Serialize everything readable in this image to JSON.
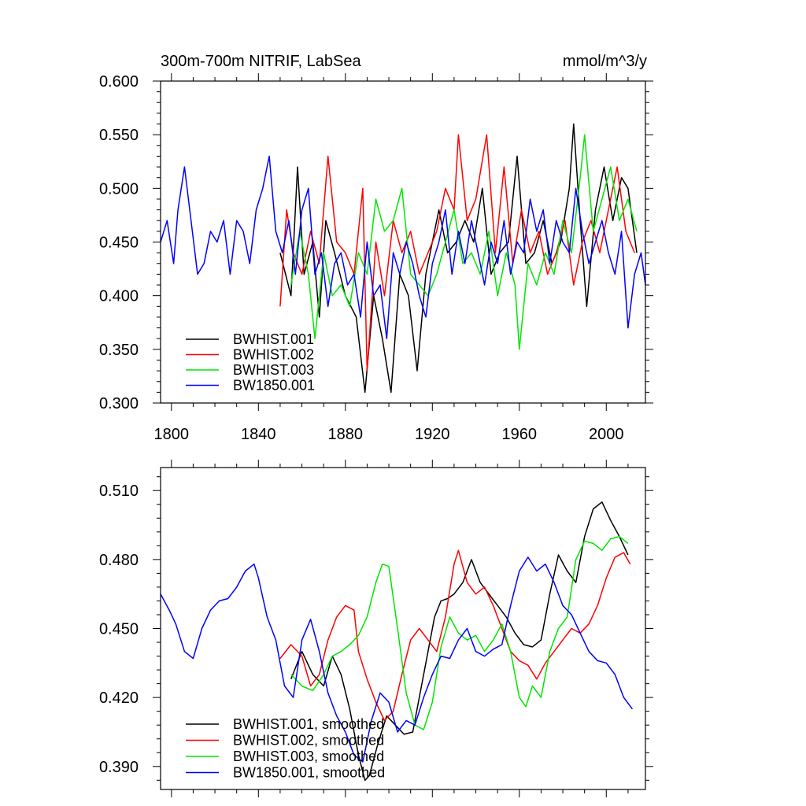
{
  "chart_data": [
    {
      "type": "line",
      "title": "300m-700m NITRIF, LabSea",
      "units": "mmol/m^3/y",
      "xlabel": "",
      "ylabel": "",
      "xlim": [
        1795,
        2018
      ],
      "ylim": [
        0.3,
        0.6
      ],
      "x_ticks": [
        1800,
        1840,
        1880,
        1920,
        1960,
        2000
      ],
      "x_tick_labels": [
        "1800",
        "1840",
        "1880",
        "1920",
        "1960",
        "2000"
      ],
      "y_ticks": [
        0.3,
        0.35,
        0.4,
        0.45,
        0.5,
        0.55,
        0.6
      ],
      "y_tick_labels": [
        "0.300",
        "0.350",
        "0.400",
        "0.450",
        "0.500",
        "0.550",
        "0.600"
      ],
      "legend_position": "bottom-left",
      "series": [
        {
          "name": "BWHIST.001",
          "color": "#000000",
          "x": [
            1850,
            1855,
            1858,
            1861,
            1865,
            1868,
            1871,
            1875,
            1880,
            1885,
            1889,
            1893,
            1897,
            1901,
            1905,
            1909,
            1913,
            1917,
            1920,
            1923,
            1927,
            1931,
            1935,
            1939,
            1943,
            1947,
            1951,
            1955,
            1959,
            1963,
            1967,
            1971,
            1975,
            1979,
            1983,
            1985,
            1988,
            1991,
            1995,
            1999,
            2003,
            2007,
            2010,
            2014
          ],
          "values": [
            0.44,
            0.4,
            0.52,
            0.42,
            0.45,
            0.38,
            0.47,
            0.44,
            0.4,
            0.38,
            0.31,
            0.4,
            0.36,
            0.31,
            0.42,
            0.4,
            0.33,
            0.42,
            0.45,
            0.48,
            0.44,
            0.45,
            0.47,
            0.45,
            0.5,
            0.42,
            0.44,
            0.45,
            0.53,
            0.43,
            0.44,
            0.47,
            0.43,
            0.45,
            0.5,
            0.56,
            0.47,
            0.39,
            0.48,
            0.52,
            0.47,
            0.51,
            0.5,
            0.44
          ]
        },
        {
          "name": "BWHIST.002",
          "color": "#ff0000",
          "x": [
            1850,
            1853,
            1856,
            1860,
            1864,
            1868,
            1872,
            1876,
            1880,
            1884,
            1888,
            1890,
            1894,
            1898,
            1902,
            1906,
            1910,
            1914,
            1918,
            1922,
            1926,
            1930,
            1932,
            1936,
            1940,
            1945,
            1949,
            1953,
            1957,
            1961,
            1965,
            1969,
            1973,
            1977,
            1981,
            1985,
            1989,
            1993,
            1997,
            2001,
            2005,
            2009,
            2013
          ],
          "values": [
            0.39,
            0.48,
            0.44,
            0.42,
            0.46,
            0.43,
            0.53,
            0.45,
            0.44,
            0.42,
            0.5,
            0.33,
            0.45,
            0.4,
            0.47,
            0.44,
            0.46,
            0.42,
            0.44,
            0.46,
            0.5,
            0.48,
            0.55,
            0.47,
            0.49,
            0.55,
            0.44,
            0.52,
            0.43,
            0.48,
            0.44,
            0.46,
            0.42,
            0.44,
            0.47,
            0.41,
            0.45,
            0.47,
            0.44,
            0.48,
            0.52,
            0.46,
            0.44
          ]
        },
        {
          "name": "BWHIST.003",
          "color": "#00e600",
          "x": [
            1855,
            1859,
            1863,
            1866,
            1870,
            1874,
            1878,
            1882,
            1886,
            1890,
            1894,
            1898,
            1902,
            1906,
            1910,
            1914,
            1918,
            1922,
            1926,
            1930,
            1934,
            1938,
            1942,
            1946,
            1950,
            1954,
            1958,
            1960,
            1964,
            1968,
            1972,
            1976,
            1980,
            1984,
            1988,
            1990,
            1994,
            1998,
            2002,
            2006,
            2010,
            2014
          ],
          "values": [
            0.41,
            0.46,
            0.42,
            0.36,
            0.44,
            0.4,
            0.41,
            0.39,
            0.44,
            0.42,
            0.49,
            0.46,
            0.47,
            0.5,
            0.42,
            0.41,
            0.4,
            0.42,
            0.45,
            0.48,
            0.43,
            0.44,
            0.42,
            0.46,
            0.4,
            0.44,
            0.41,
            0.35,
            0.43,
            0.41,
            0.44,
            0.42,
            0.47,
            0.44,
            0.51,
            0.55,
            0.46,
            0.49,
            0.52,
            0.47,
            0.49,
            0.46
          ]
        },
        {
          "name": "BW1850.001",
          "color": "#0000ff",
          "x": [
            1795,
            1798,
            1801,
            1803,
            1806,
            1809,
            1812,
            1815,
            1818,
            1821,
            1824,
            1827,
            1830,
            1833,
            1836,
            1839,
            1842,
            1845,
            1848,
            1851,
            1854,
            1857,
            1860,
            1863,
            1866,
            1869,
            1872,
            1875,
            1878,
            1881,
            1884,
            1887,
            1890,
            1893,
            1896,
            1899,
            1902,
            1905,
            1908,
            1911,
            1914,
            1917,
            1920,
            1923,
            1926,
            1929,
            1932,
            1935,
            1938,
            1941,
            1944,
            1947,
            1950,
            1953,
            1956,
            1959,
            1962,
            1965,
            1968,
            1971,
            1974,
            1977,
            1980,
            1983,
            1986,
            1989,
            1992,
            1995,
            1998,
            2001,
            2004,
            2007,
            2010,
            2013,
            2016,
            2018
          ],
          "values": [
            0.45,
            0.47,
            0.43,
            0.48,
            0.52,
            0.47,
            0.42,
            0.43,
            0.46,
            0.45,
            0.47,
            0.42,
            0.47,
            0.46,
            0.43,
            0.48,
            0.5,
            0.53,
            0.46,
            0.44,
            0.47,
            0.42,
            0.48,
            0.5,
            0.42,
            0.44,
            0.39,
            0.43,
            0.44,
            0.41,
            0.42,
            0.38,
            0.45,
            0.4,
            0.41,
            0.36,
            0.44,
            0.42,
            0.45,
            0.43,
            0.4,
            0.38,
            0.43,
            0.45,
            0.48,
            0.42,
            0.46,
            0.43,
            0.47,
            0.44,
            0.41,
            0.45,
            0.43,
            0.47,
            0.42,
            0.45,
            0.44,
            0.49,
            0.46,
            0.48,
            0.43,
            0.47,
            0.45,
            0.44,
            0.5,
            0.46,
            0.43,
            0.45,
            0.47,
            0.44,
            0.42,
            0.46,
            0.37,
            0.42,
            0.44,
            0.41
          ]
        }
      ]
    },
    {
      "type": "line",
      "title": "",
      "xlabel": "",
      "ylabel": "",
      "xlim": [
        1795,
        2018
      ],
      "ylim": [
        0.38,
        0.52
      ],
      "x_ticks": [
        1800,
        1840,
        1880,
        1920,
        1960,
        2000
      ],
      "x_tick_labels": [],
      "y_ticks": [
        0.39,
        0.42,
        0.45,
        0.48,
        0.51
      ],
      "y_tick_labels": [
        "0.390",
        "0.420",
        "0.450",
        "0.480",
        "0.510"
      ],
      "legend_position": "bottom-left",
      "series": [
        {
          "name": "BWHIST.001, smoothed",
          "color": "#000000",
          "x": [
            1855,
            1860,
            1865,
            1870,
            1874,
            1878,
            1882,
            1886,
            1889,
            1891,
            1895,
            1899,
            1903,
            1907,
            1911,
            1914,
            1918,
            1921,
            1924,
            1927,
            1930,
            1934,
            1938,
            1942,
            1946,
            1950,
            1954,
            1958,
            1962,
            1966,
            1970,
            1974,
            1978,
            1982,
            1986,
            1990,
            1994,
            1998,
            2002,
            2006,
            2010
          ],
          "values": [
            0.428,
            0.44,
            0.43,
            0.425,
            0.438,
            0.43,
            0.415,
            0.395,
            0.384,
            0.386,
            0.4,
            0.412,
            0.408,
            0.404,
            0.405,
            0.42,
            0.44,
            0.455,
            0.462,
            0.463,
            0.465,
            0.47,
            0.48,
            0.47,
            0.465,
            0.46,
            0.455,
            0.448,
            0.443,
            0.442,
            0.445,
            0.465,
            0.482,
            0.475,
            0.47,
            0.49,
            0.502,
            0.505,
            0.497,
            0.49,
            0.482
          ]
        },
        {
          "name": "BWHIST.002, smoothed",
          "color": "#ff0000",
          "x": [
            1850,
            1855,
            1860,
            1864,
            1868,
            1872,
            1876,
            1880,
            1884,
            1886,
            1890,
            1894,
            1898,
            1902,
            1906,
            1910,
            1914,
            1918,
            1922,
            1926,
            1930,
            1932,
            1936,
            1940,
            1944,
            1948,
            1952,
            1956,
            1960,
            1964,
            1968,
            1972,
            1976,
            1980,
            1984,
            1988,
            1992,
            1996,
            2000,
            2004,
            2008,
            2011
          ],
          "values": [
            0.437,
            0.443,
            0.438,
            0.425,
            0.43,
            0.445,
            0.455,
            0.46,
            0.458,
            0.44,
            0.428,
            0.418,
            0.41,
            0.414,
            0.43,
            0.445,
            0.45,
            0.445,
            0.44,
            0.455,
            0.478,
            0.484,
            0.47,
            0.465,
            0.468,
            0.46,
            0.45,
            0.44,
            0.436,
            0.434,
            0.428,
            0.435,
            0.44,
            0.445,
            0.45,
            0.448,
            0.452,
            0.46,
            0.472,
            0.481,
            0.483,
            0.478
          ]
        },
        {
          "name": "BWHIST.003, smoothed",
          "color": "#00e600",
          "x": [
            1855,
            1860,
            1865,
            1870,
            1874,
            1878,
            1882,
            1886,
            1890,
            1894,
            1897,
            1900,
            1904,
            1908,
            1912,
            1916,
            1920,
            1924,
            1928,
            1932,
            1936,
            1940,
            1944,
            1948,
            1952,
            1956,
            1960,
            1963,
            1966,
            1970,
            1974,
            1978,
            1982,
            1986,
            1990,
            1994,
            1998,
            2002,
            2006,
            2010
          ],
          "values": [
            0.43,
            0.425,
            0.423,
            0.43,
            0.438,
            0.44,
            0.443,
            0.447,
            0.455,
            0.47,
            0.478,
            0.477,
            0.45,
            0.422,
            0.408,
            0.406,
            0.418,
            0.442,
            0.455,
            0.448,
            0.445,
            0.447,
            0.44,
            0.445,
            0.452,
            0.44,
            0.42,
            0.416,
            0.425,
            0.42,
            0.44,
            0.45,
            0.455,
            0.48,
            0.488,
            0.487,
            0.484,
            0.489,
            0.49,
            0.487
          ]
        },
        {
          "name": "BW1850.001, smoothed",
          "color": "#0000ff",
          "x": [
            1795,
            1799,
            1802,
            1806,
            1810,
            1814,
            1818,
            1822,
            1826,
            1830,
            1834,
            1838,
            1840,
            1844,
            1848,
            1852,
            1856,
            1860,
            1864,
            1868,
            1872,
            1876,
            1880,
            1884,
            1888,
            1892,
            1896,
            1900,
            1904,
            1908,
            1912,
            1916,
            1920,
            1924,
            1928,
            1932,
            1936,
            1940,
            1944,
            1948,
            1952,
            1956,
            1960,
            1964,
            1968,
            1972,
            1976,
            1980,
            1984,
            1988,
            1992,
            1996,
            2000,
            2004,
            2008,
            2012
          ],
          "values": [
            0.465,
            0.458,
            0.452,
            0.44,
            0.437,
            0.45,
            0.458,
            0.462,
            0.463,
            0.468,
            0.475,
            0.478,
            0.472,
            0.455,
            0.445,
            0.425,
            0.42,
            0.445,
            0.454,
            0.44,
            0.422,
            0.412,
            0.405,
            0.395,
            0.392,
            0.41,
            0.422,
            0.418,
            0.405,
            0.41,
            0.408,
            0.42,
            0.43,
            0.438,
            0.437,
            0.445,
            0.45,
            0.44,
            0.438,
            0.441,
            0.443,
            0.46,
            0.475,
            0.481,
            0.475,
            0.478,
            0.47,
            0.46,
            0.456,
            0.448,
            0.44,
            0.436,
            0.435,
            0.43,
            0.42,
            0.415
          ]
        }
      ]
    }
  ]
}
